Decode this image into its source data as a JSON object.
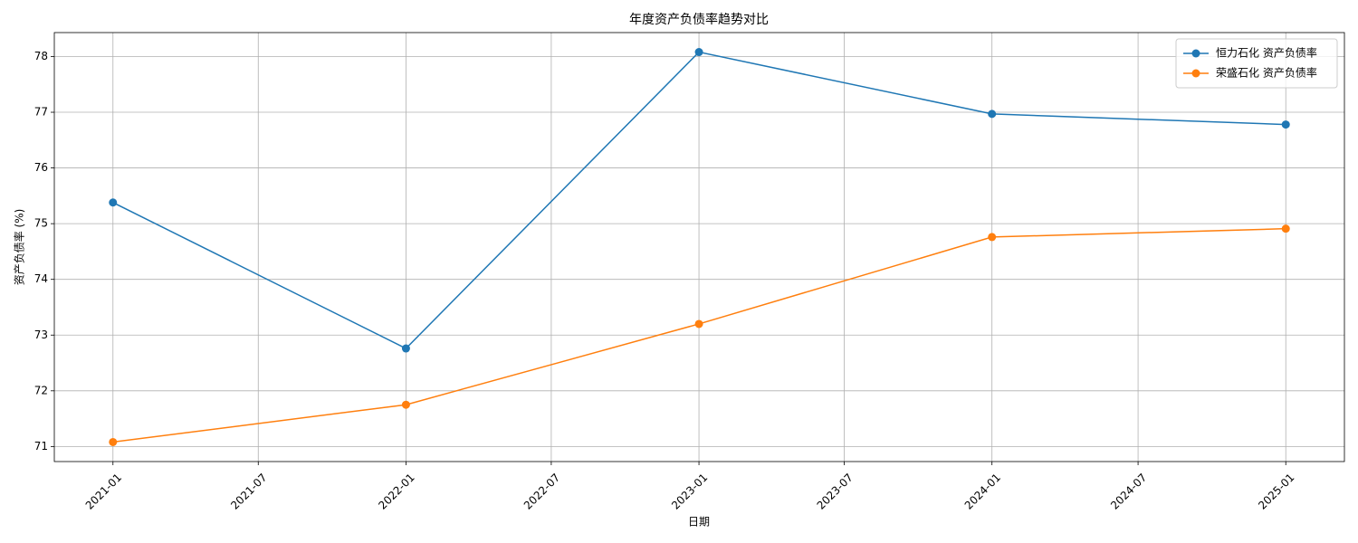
{
  "chart_data": {
    "type": "line",
    "title": "年度资产负债率趋势对比",
    "x_label": "日期",
    "y_label": "资产负债率 (%)",
    "x": [
      "2021-01",
      "2022-01",
      "2023-01",
      "2024-01",
      "2025-01"
    ],
    "series": [
      {
        "name": "恒力石化 资产负债率",
        "color": "#1f77b4",
        "values": [
          75.38,
          72.76,
          78.08,
          76.97,
          76.78
        ]
      },
      {
        "name": "荣盛石化 资产负债率",
        "color": "#ff7f0e",
        "values": [
          71.08,
          71.75,
          73.2,
          74.76,
          74.91
        ]
      }
    ],
    "xticks": [
      "2021-01",
      "2021-07",
      "2022-01",
      "2022-07",
      "2023-01",
      "2023-07",
      "2024-01",
      "2024-07",
      "2025-01"
    ],
    "ylim": [
      70.73,
      78.43
    ],
    "yticks": [
      71,
      72,
      73,
      74,
      75,
      76,
      77,
      78
    ],
    "grid": true,
    "legend": "upper right"
  }
}
